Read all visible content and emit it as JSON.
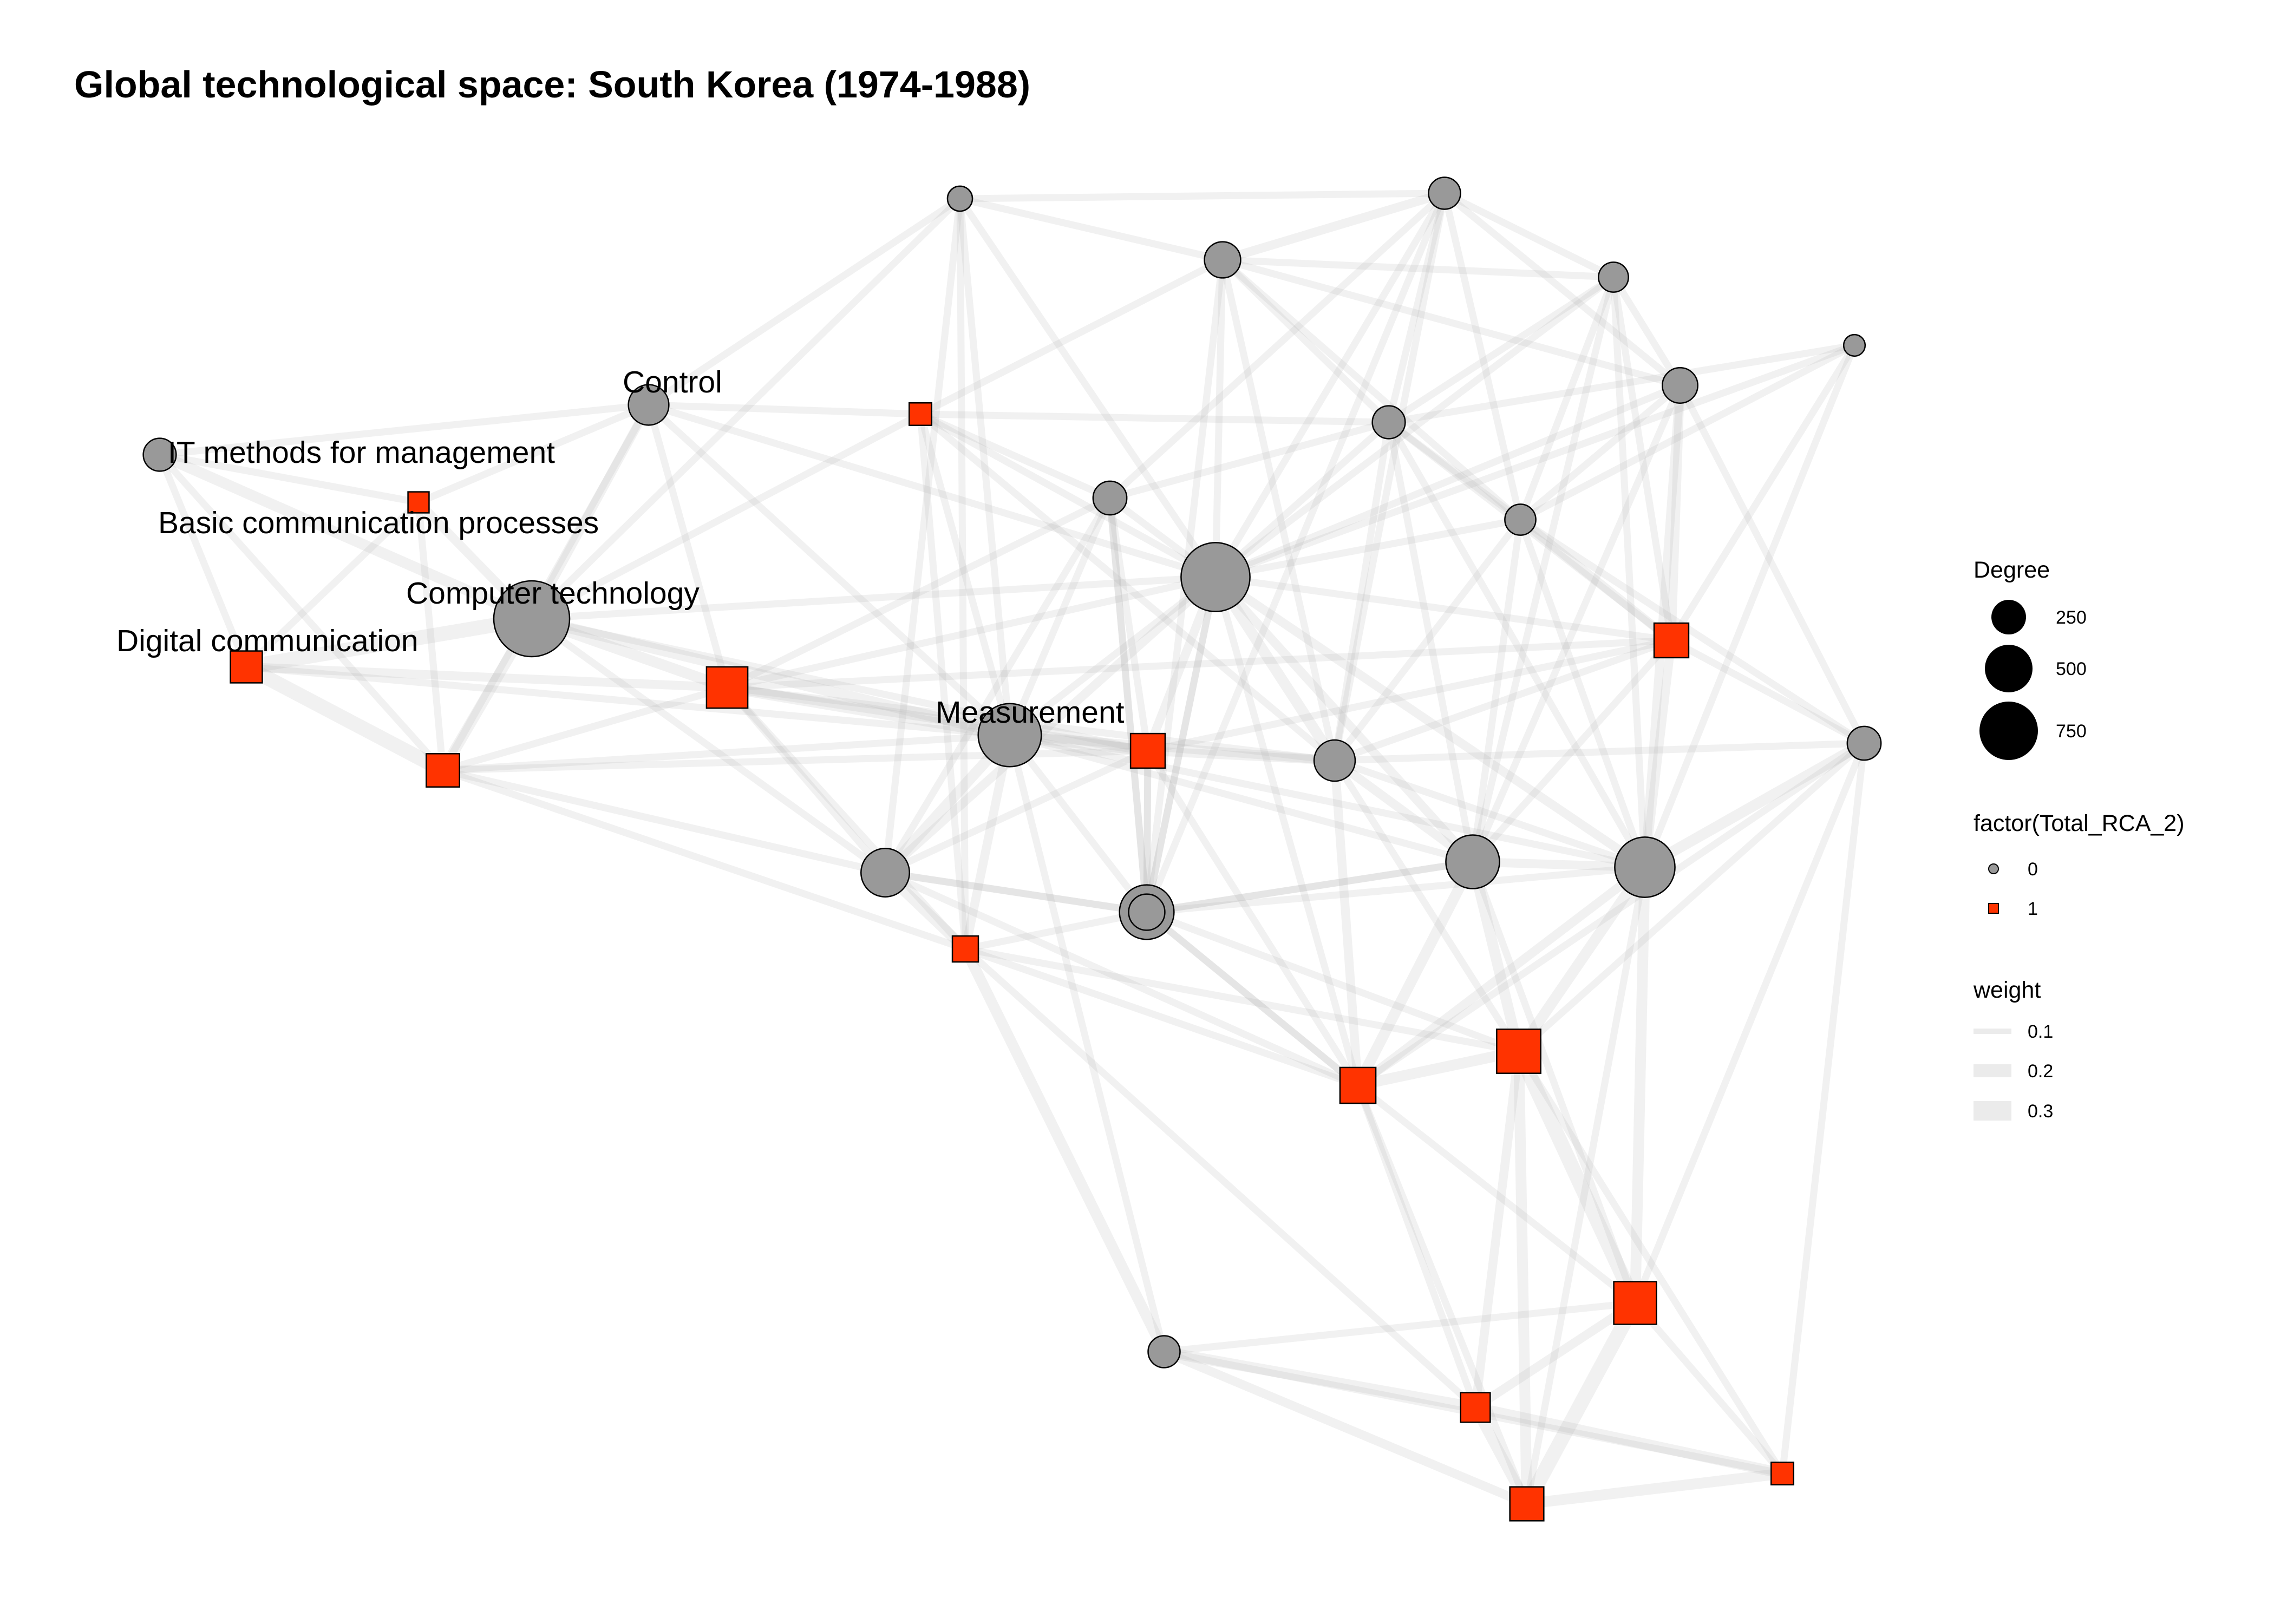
{
  "title": "Global technological space: South Korea (1974-1988)",
  "colors": {
    "rca_0": "#999999",
    "rca_1": "#ff3300",
    "edge": "#b0b0b0",
    "legend_edge": "#ebebeb"
  },
  "labels": {
    "control": "Control",
    "it_methods": "IT methods for management",
    "basic_comm": "Basic communication processes",
    "computer_tech": "Computer technology",
    "digital_comm": "Digital communication",
    "measurement": "Measurement"
  },
  "legend": {
    "degree": {
      "title": "Degree",
      "items": [
        "250",
        "500",
        "750"
      ]
    },
    "rca": {
      "title": "factor(Total_RCA_2)",
      "items": [
        "0",
        "1"
      ]
    },
    "weight": {
      "title": "weight",
      "items": [
        "0.1",
        "0.2",
        "0.3"
      ]
    }
  },
  "network": {
    "nodes": [
      {
        "id": "n_top1",
        "rca": 0,
        "degree": 40
      },
      {
        "id": "n_top2",
        "rca": 0,
        "degree": 150
      },
      {
        "id": "n_top3",
        "rca": 0,
        "degree": 100
      },
      {
        "id": "n_top4",
        "rca": 0,
        "degree": 80
      },
      {
        "id": "n_far_right_small",
        "rca": 0,
        "degree": 20
      },
      {
        "id": "control",
        "rca": 0,
        "label": "control",
        "degree": 210
      },
      {
        "id": "n_red_small_top",
        "rca": 1,
        "degree": 40
      },
      {
        "id": "n_mid1",
        "rca": 0,
        "degree": 120
      },
      {
        "id": "n_mid2",
        "rca": 0,
        "degree": 110
      },
      {
        "id": "n_mid3",
        "rca": 0,
        "degree": 140
      },
      {
        "id": "it_methods",
        "rca": 0,
        "label": "it_methods",
        "degree": 110
      },
      {
        "id": "basic_comm",
        "rca": 1,
        "label": "basic_comm",
        "degree": 30
      },
      {
        "id": "n_mid4",
        "rca": 0,
        "degree": 90
      },
      {
        "id": "hub",
        "rca": 0,
        "degree": 870
      },
      {
        "id": "computer_tech",
        "rca": 0,
        "label": "computer_tech",
        "degree": 1100
      },
      {
        "id": "n_red_right1",
        "rca": 1,
        "degree": 180
      },
      {
        "id": "digital_comm",
        "rca": 1,
        "label": "digital_comm",
        "degree": 140
      },
      {
        "id": "n_red_left1",
        "rca": 1,
        "degree": 160
      },
      {
        "id": "n_red_center1",
        "rca": 1,
        "degree": 300
      },
      {
        "id": "measurement",
        "rca": 0,
        "label": "measurement",
        "degree": 700
      },
      {
        "id": "n_red_center2",
        "rca": 1,
        "degree": 180
      },
      {
        "id": "n_mid5",
        "rca": 0,
        "degree": 350
      },
      {
        "id": "n_right_gray1",
        "rca": 0,
        "degree": 220
      },
      {
        "id": "n_gray_lower1",
        "rca": 0,
        "degree": 480
      },
      {
        "id": "n_gray_lower2",
        "rca": 0,
        "degree": 460
      },
      {
        "id": "n_gray_lower3",
        "rca": 0,
        "degree": 620
      },
      {
        "id": "n_gray_lower4",
        "rca": 0,
        "degree": 150
      },
      {
        "id": "n_red_lower1",
        "rca": 1,
        "degree": 70
      },
      {
        "id": "n_red_lower2",
        "rca": 1,
        "degree": 200
      },
      {
        "id": "n_red_lower3",
        "rca": 1,
        "degree": 360
      },
      {
        "id": "n_red_bottom1",
        "rca": 1,
        "degree": 330
      },
      {
        "id": "n_gray_bottom1",
        "rca": 0,
        "degree": 100
      },
      {
        "id": "n_red_bottom2",
        "rca": 1,
        "degree": 110
      },
      {
        "id": "n_red_bottom3",
        "rca": 1,
        "degree": 170
      },
      {
        "id": "n_red_bottom4",
        "rca": 1,
        "degree": 40
      }
    ],
    "edges": [
      [
        "control",
        "it_methods",
        0.1
      ],
      [
        "control",
        "basic_comm",
        0.1
      ],
      [
        "control",
        "computer_tech",
        0.15
      ],
      [
        "control",
        "n_red_left1",
        0.1
      ],
      [
        "control",
        "n_red_center1",
        0.1
      ],
      [
        "control",
        "measurement",
        0.1
      ],
      [
        "control",
        "n_top1",
        0.1
      ],
      [
        "control",
        "n_red_small_top",
        0.1
      ],
      [
        "control",
        "hub",
        0.1
      ],
      [
        "it_methods",
        "computer_tech",
        0.2
      ],
      [
        "it_methods",
        "digital_comm",
        0.1
      ],
      [
        "it_methods",
        "basic_comm",
        0.1
      ],
      [
        "it_methods",
        "n_red_left1",
        0.1
      ],
      [
        "basic_comm",
        "digital_comm",
        0.1
      ],
      [
        "basic_comm",
        "computer_tech",
        0.15
      ],
      [
        "basic_comm",
        "n_red_left1",
        0.1
      ],
      [
        "computer_tech",
        "digital_comm",
        0.3
      ],
      [
        "computer_tech",
        "n_red_left1",
        0.2
      ],
      [
        "computer_tech",
        "n_red_center1",
        0.2
      ],
      [
        "computer_tech",
        "measurement",
        0.2
      ],
      [
        "computer_tech",
        "n_top1",
        0.1
      ],
      [
        "computer_tech",
        "hub",
        0.1
      ],
      [
        "computer_tech",
        "n_red_small_top",
        0.1
      ],
      [
        "computer_tech",
        "n_mid5",
        0.1
      ],
      [
        "computer_tech",
        "n_red_center2",
        0.1
      ],
      [
        "digital_comm",
        "n_red_left1",
        0.3
      ],
      [
        "digital_comm",
        "n_red_center1",
        0.15
      ],
      [
        "digital_comm",
        "measurement",
        0.1
      ],
      [
        "n_red_left1",
        "n_red_center1",
        0.1
      ],
      [
        "n_red_left1",
        "measurement",
        0.1
      ],
      [
        "n_red_left1",
        "n_mid5",
        0.1
      ],
      [
        "n_red_left1",
        "n_red_lower1",
        0.1
      ],
      [
        "n_red_left1",
        "n_red_center2",
        0.1
      ],
      [
        "n_red_center1",
        "measurement",
        0.2
      ],
      [
        "n_red_center1",
        "n_red_center2",
        0.15
      ],
      [
        "n_red_center1",
        "hub",
        0.1
      ],
      [
        "n_red_center1",
        "n_mid5",
        0.1
      ],
      [
        "n_red_center1",
        "n_mid1",
        0.1
      ],
      [
        "n_red_center1",
        "n_red_lower1",
        0.1
      ],
      [
        "n_red_center1",
        "n_right_gray1",
        0.1
      ],
      [
        "n_red_center1",
        "n_red_right1",
        0.1
      ],
      [
        "measurement",
        "n_red_center2",
        0.2
      ],
      [
        "measurement",
        "hub",
        0.1
      ],
      [
        "measurement",
        "n_mid5",
        0.2
      ],
      [
        "measurement",
        "n_red_lower1",
        0.15
      ],
      [
        "measurement",
        "n_gray_lower4",
        0.1
      ],
      [
        "measurement",
        "n_right_gray1",
        0.15
      ],
      [
        "measurement",
        "n_gray_lower2",
        0.1
      ],
      [
        "measurement",
        "n_mid1",
        0.1
      ],
      [
        "measurement",
        "n_top1",
        0.1
      ],
      [
        "measurement",
        "n_gray_bottom1",
        0.1
      ],
      [
        "measurement",
        "n_red_small_top",
        0.1
      ],
      [
        "measurement",
        "n_gray_lower3",
        0.1
      ],
      [
        "n_red_small_top",
        "hub",
        0.1
      ],
      [
        "n_red_small_top",
        "n_right_gray1",
        0.1
      ],
      [
        "n_red_small_top",
        "n_mid1",
        0.1
      ],
      [
        "n_red_small_top",
        "n_red_lower1",
        0.1
      ],
      [
        "n_red_small_top",
        "n_top2",
        0.1
      ],
      [
        "n_red_small_top",
        "n_mid2",
        0.1
      ],
      [
        "n_top1",
        "n_top2",
        0.1
      ],
      [
        "n_top1",
        "n_top3",
        0.1
      ],
      [
        "n_top1",
        "n_red_lower1",
        0.1
      ],
      [
        "n_top1",
        "n_mid5",
        0.1
      ],
      [
        "n_top1",
        "hub",
        0.1
      ],
      [
        "n_top2",
        "n_top3",
        0.15
      ],
      [
        "n_top2",
        "n_top4",
        0.1
      ],
      [
        "n_top2",
        "n_mid2",
        0.1
      ],
      [
        "n_top2",
        "n_mid3",
        0.1
      ],
      [
        "n_top2",
        "hub",
        0.1
      ],
      [
        "n_top2",
        "n_gray_lower1",
        0.1
      ],
      [
        "n_top2",
        "n_mid4",
        0.1
      ],
      [
        "n_top2",
        "n_right_gray1",
        0.1
      ],
      [
        "n_top3",
        "n_top4",
        0.1
      ],
      [
        "n_top3",
        "n_mid2",
        0.1
      ],
      [
        "n_top3",
        "n_mid3",
        0.1
      ],
      [
        "n_top3",
        "n_gray_lower1",
        0.1
      ],
      [
        "n_top3",
        "hub",
        0.1
      ],
      [
        "n_top3",
        "n_mid4",
        0.1
      ],
      [
        "n_top3",
        "n_right_gray1",
        0.1
      ],
      [
        "n_top3",
        "n_mid1",
        0.1
      ],
      [
        "n_top4",
        "n_mid3",
        0.1
      ],
      [
        "n_top4",
        "n_red_right1",
        0.1
      ],
      [
        "n_top4",
        "n_gray_lower3",
        0.1
      ],
      [
        "n_top4",
        "n_gray_lower2",
        0.1
      ],
      [
        "n_top4",
        "n_mid4",
        0.1
      ],
      [
        "n_top4",
        "hub",
        0.1
      ],
      [
        "n_top4",
        "n_mid2",
        0.1
      ],
      [
        "n_far_right_small",
        "n_mid4",
        0.1
      ],
      [
        "n_far_right_small",
        "n_red_right1",
        0.1
      ],
      [
        "n_far_right_small",
        "hub",
        0.1
      ],
      [
        "n_far_right_small",
        "n_gray_lower3",
        0.1
      ],
      [
        "n_far_right_small",
        "n_mid2",
        0.1
      ],
      [
        "n_mid1",
        "hub",
        0.1
      ],
      [
        "n_mid1",
        "n_mid2",
        0.1
      ],
      [
        "n_mid1",
        "n_mid5",
        0.1
      ],
      [
        "n_mid1",
        "n_gray_lower4",
        0.1
      ],
      [
        "n_mid1",
        "n_red_center2",
        0.1
      ],
      [
        "n_mid1",
        "n_gray_lower1",
        0.1
      ],
      [
        "n_mid2",
        "hub",
        0.1
      ],
      [
        "n_mid2",
        "n_mid4",
        0.1
      ],
      [
        "n_mid2",
        "n_right_gray1",
        0.1
      ],
      [
        "n_mid2",
        "n_gray_lower2",
        0.1
      ],
      [
        "n_mid2",
        "n_gray_lower3",
        0.1
      ],
      [
        "n_mid2",
        "n_red_right1",
        0.1
      ],
      [
        "n_mid3",
        "hub",
        0.1
      ],
      [
        "n_mid3",
        "n_red_right1",
        0.15
      ],
      [
        "n_mid3",
        "n_gray_right",
        0.1
      ],
      [
        "n_mid3",
        "n_gray_lower3",
        0.15
      ],
      [
        "n_mid3",
        "n_mid4",
        0.1
      ],
      [
        "n_mid3",
        "n_gray_lower2",
        0.1
      ],
      [
        "n_mid4",
        "hub",
        0.1
      ],
      [
        "n_mid4",
        "n_red_right1",
        0.15
      ],
      [
        "n_mid4",
        "n_gray_right",
        0.1
      ],
      [
        "n_mid4",
        "n_gray_lower2",
        0.1
      ],
      [
        "n_mid4",
        "n_right_gray1",
        0.1
      ],
      [
        "n_mid4",
        "n_gray_lower3",
        0.1
      ],
      [
        "hub",
        "n_red_center2",
        0.15
      ],
      [
        "hub",
        "n_mid5",
        0.15
      ],
      [
        "hub",
        "n_right_gray1",
        0.2
      ],
      [
        "hub",
        "n_gray_lower2",
        0.15
      ],
      [
        "hub",
        "n_gray_lower3",
        0.15
      ],
      [
        "hub",
        "n_red_right1",
        0.1
      ],
      [
        "hub",
        "n_gray_lower4",
        0.1
      ],
      [
        "hub",
        "n_red_lower2",
        0.1
      ],
      [
        "hub",
        "n_gray_lower1",
        0.1
      ],
      [
        "n_red_right1",
        "n_gray_right",
        0.1
      ],
      [
        "n_red_right1",
        "n_right_gray1",
        0.1
      ],
      [
        "n_red_right1",
        "n_gray_lower3",
        0.15
      ],
      [
        "n_red_right1",
        "n_gray_lower2",
        0.1
      ],
      [
        "n_red_right1",
        "n_red_center2",
        0.1
      ],
      [
        "n_gray_right",
        "n_gray_lower3",
        0.2
      ],
      [
        "n_gray_right",
        "n_red_lower3",
        0.1
      ],
      [
        "n_gray_right",
        "n_red_bottom1",
        0.1
      ],
      [
        "n_gray_right",
        "n_right_gray1",
        0.1
      ],
      [
        "n_gray_right",
        "n_red_lower2",
        0.1
      ],
      [
        "n_red_center2",
        "n_right_gray1",
        0.15
      ],
      [
        "n_red_center2",
        "n_mid5",
        0.1
      ],
      [
        "n_red_center2",
        "n_gray_lower1",
        0.1
      ],
      [
        "n_red_center2",
        "n_gray_lower4",
        0.1
      ],
      [
        "n_red_center2",
        "n_red_lower2",
        0.1
      ],
      [
        "n_right_gray1",
        "n_gray_lower2",
        0.15
      ],
      [
        "n_right_gray1",
        "n_red_lower2",
        0.15
      ],
      [
        "n_right_gray1",
        "n_red_lower3",
        0.1
      ],
      [
        "n_right_gray1",
        "n_gray_lower3",
        0.1
      ],
      [
        "n_mid5",
        "n_red_lower1",
        0.2
      ],
      [
        "n_mid5",
        "n_gray_lower4",
        0.1
      ],
      [
        "n_mid5",
        "n_gray_lower1",
        0.1
      ],
      [
        "n_mid5",
        "n_red_lower2",
        0.1
      ],
      [
        "n_gray_lower1",
        "n_gray_lower2",
        0.1
      ],
      [
        "n_gray_lower1",
        "n_red_lower2",
        0.1
      ],
      [
        "n_gray_lower2",
        "n_gray_lower3",
        0.15
      ],
      [
        "n_gray_lower2",
        "n_red_lower2",
        0.2
      ],
      [
        "n_gray_lower2",
        "n_red_lower3",
        0.2
      ],
      [
        "n_gray_lower2",
        "n_gray_lower4",
        0.1
      ],
      [
        "n_gray_lower2",
        "n_red_bottom1",
        0.1
      ],
      [
        "n_gray_lower3",
        "n_red_lower3",
        0.2
      ],
      [
        "n_gray_lower3",
        "n_red_bottom1",
        0.2
      ],
      [
        "n_gray_lower3",
        "n_gray_lower4",
        0.1
      ],
      [
        "n_gray_lower3",
        "n_red_lower2",
        0.15
      ],
      [
        "n_gray_lower3",
        "n_red_bottom3",
        0.1
      ],
      [
        "n_gray_lower4",
        "n_red_lower1",
        0.1
      ],
      [
        "n_gray_lower4",
        "n_red_lower2",
        0.1
      ],
      [
        "n_gray_lower4",
        "n_red_lower3",
        0.1
      ],
      [
        "n_red_lower1",
        "n_red_lower2",
        0.1
      ],
      [
        "n_red_lower1",
        "n_gray_bottom1",
        0.2
      ],
      [
        "n_red_lower1",
        "n_red_lower3",
        0.1
      ],
      [
        "n_red_lower1",
        "n_red_bottom2",
        0.1
      ],
      [
        "n_red_lower2",
        "n_red_lower3",
        0.2
      ],
      [
        "n_red_lower2",
        "n_red_bottom1",
        0.1
      ],
      [
        "n_red_lower2",
        "n_red_bottom2",
        0.1
      ],
      [
        "n_red_lower2",
        "n_red_bottom3",
        0.1
      ],
      [
        "n_red_lower3",
        "n_red_bottom1",
        0.3
      ],
      [
        "n_red_lower3",
        "n_red_bottom2",
        0.15
      ],
      [
        "n_red_lower3",
        "n_red_bottom3",
        0.2
      ],
      [
        "n_red_lower3",
        "n_red_bottom4",
        0.1
      ],
      [
        "n_red_bottom1",
        "n_red_bottom2",
        0.15
      ],
      [
        "n_red_bottom1",
        "n_red_bottom3",
        0.3
      ],
      [
        "n_red_bottom1",
        "n_gray_bottom1",
        0.1
      ],
      [
        "n_red_bottom1",
        "n_red_bottom4",
        0.1
      ],
      [
        "n_gray_bottom1",
        "n_red_bottom2",
        0.2
      ],
      [
        "n_gray_bottom1",
        "n_red_bottom3",
        0.15
      ],
      [
        "n_gray_bottom1",
        "n_red_bottom4",
        0.1
      ],
      [
        "n_red_bottom2",
        "n_red_bottom3",
        0.2
      ],
      [
        "n_red_bottom2",
        "n_red_bottom4",
        0.2
      ],
      [
        "n_red_bottom3",
        "n_red_bottom4",
        0.2
      ],
      [
        "n_gray_right",
        "n_red_bottom4",
        0.1
      ]
    ],
    "extra_nodes": [
      {
        "id": "n_gray_right",
        "rca": 0,
        "degree": 120
      }
    ]
  }
}
